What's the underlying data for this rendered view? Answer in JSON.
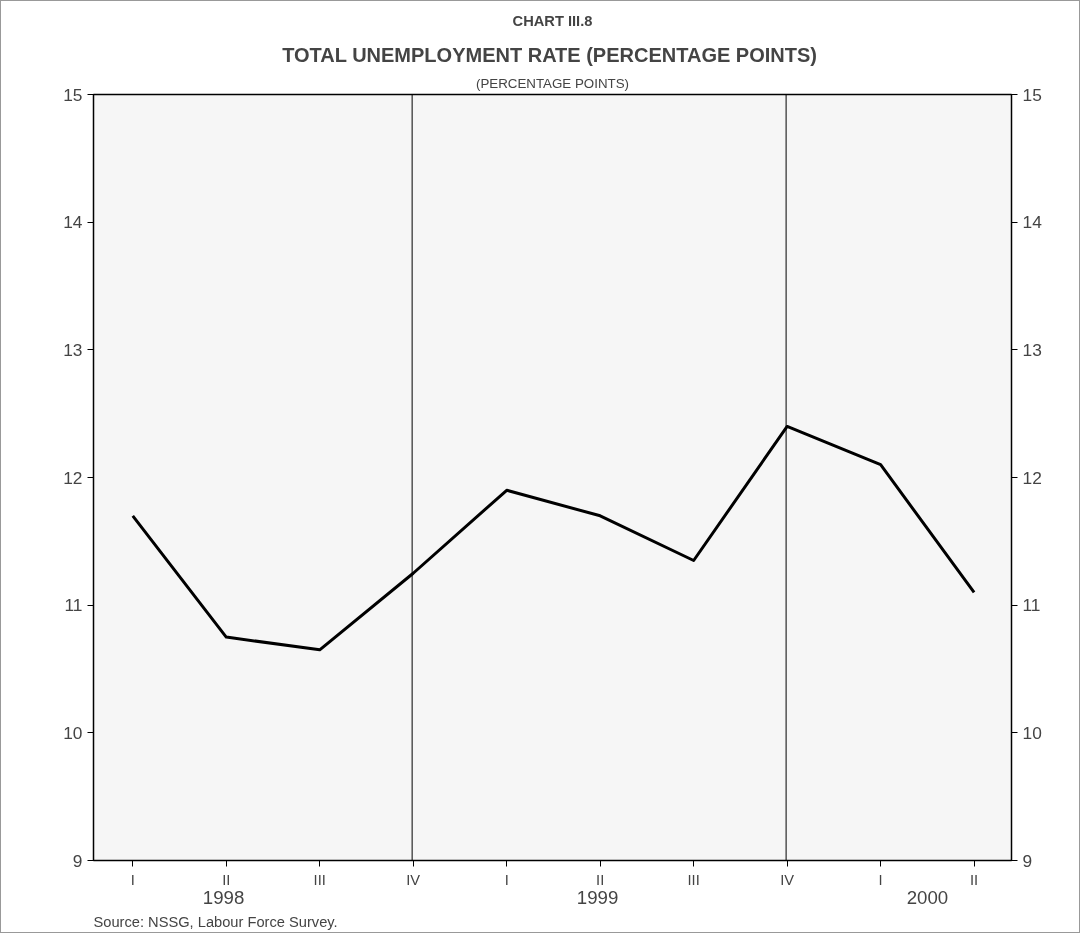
{
  "chart_data": {
    "type": "line",
    "title": "CHART III.8",
    "subtitle": "TOTAL UNEMPLOYMENT RATE  (PERCENTAGE POINTS)",
    "categories": [
      "I",
      "II",
      "III",
      "IV",
      "I",
      "II",
      "III",
      "IV",
      "I",
      "II"
    ],
    "series": [
      {
        "color": "#000000",
        "values": [
          11.7,
          10.75,
          10.65,
          11.25,
          11.9,
          11.7,
          11.35,
          12.4,
          12.1,
          11.1
        ]
      }
    ],
    "x2lim": [
      "1998-01-08",
      "2000-06-22"
    ],
    "x2ticks": [
      {
        "value": "1998-05-15",
        "label": "1998"
      },
      {
        "value": "1999-05-15",
        "label": "1999"
      },
      {
        "value": "2000-04-01",
        "label": "2000"
      }
    ],
    "ylim": [
      9,
      15
    ],
    "yticks": [
      9,
      10,
      11,
      12,
      13,
      14,
      15
    ],
    "y2lim": [
      9,
      15
    ],
    "y2ticks": [
      9,
      10,
      11,
      12,
      13,
      14,
      15
    ],
    "ref_lines": [
      {
        "axis": "x2",
        "value": "1998-11-15",
        "color": "#000000"
      },
      {
        "axis": "x2",
        "value": "1999-11-15",
        "color": "#000000"
      }
    ],
    "grid": false,
    "line_style": "solid",
    "annotations": [
      "(PERCENTAGE POINTS)",
      "Source: NSSG, Labour Force Survey."
    ]
  }
}
